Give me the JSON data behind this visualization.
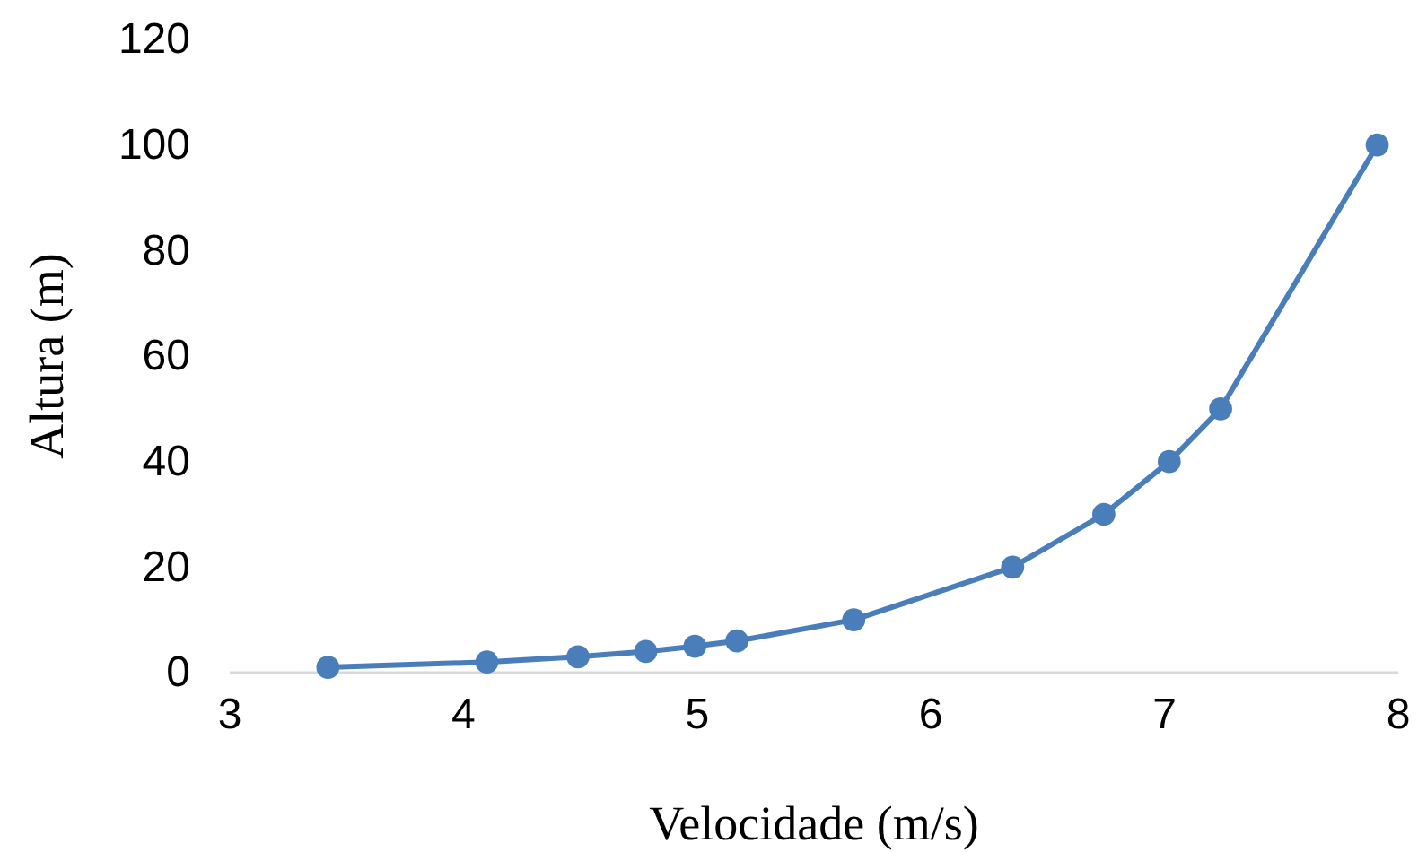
{
  "chart_data": {
    "type": "line",
    "xlabel": "Velocidade (m/s)",
    "ylabel": "Altura (m)",
    "x": [
      3.42,
      4.1,
      4.49,
      4.78,
      4.99,
      5.17,
      5.67,
      6.35,
      6.74,
      7.02,
      7.24,
      7.91
    ],
    "series": [
      {
        "color": "#4a7ebb",
        "values": [
          1,
          2,
          3,
          4,
          5,
          6,
          10,
          20,
          30,
          40,
          50,
          100
        ]
      }
    ],
    "xlim": [
      3,
      8
    ],
    "xticks": [
      3,
      4,
      5,
      6,
      7,
      8
    ],
    "ylim": [
      0,
      120
    ],
    "yticks": [
      0,
      20,
      40,
      60,
      80,
      100,
      120
    ],
    "marker": "circle",
    "line_style": "solid"
  }
}
